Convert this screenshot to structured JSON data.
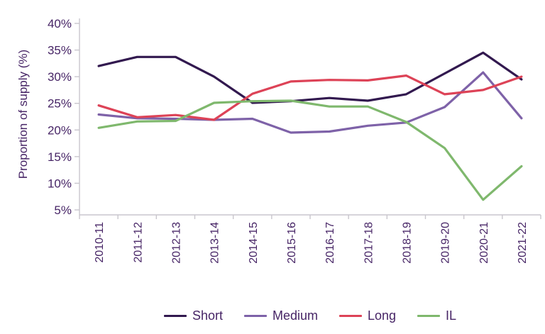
{
  "chart_data": {
    "type": "line",
    "title": "",
    "xlabel": "",
    "ylabel": "Proportion of supply (%)",
    "ylim": [
      5,
      40
    ],
    "yticks": [
      40,
      35,
      30,
      25,
      20,
      15,
      10,
      5
    ],
    "ytick_suffix": "%",
    "grid": false,
    "legend_position": "bottom",
    "categories": [
      "2010-11",
      "2011-12",
      "2012-13",
      "2013-14",
      "2014-15",
      "2015-16",
      "2016-17",
      "2017-18",
      "2018-19",
      "2019-20",
      "2020-21",
      "2021-22"
    ],
    "series": [
      {
        "name": "Short",
        "color": "#32194f",
        "values": [
          32.0,
          33.7,
          33.7,
          30.0,
          25.1,
          25.4,
          26.0,
          25.5,
          26.7,
          30.6,
          34.5,
          29.5
        ]
      },
      {
        "name": "Medium",
        "color": "#7e62a8",
        "values": [
          22.9,
          22.2,
          22.1,
          21.9,
          22.1,
          19.5,
          19.7,
          20.8,
          21.4,
          24.3,
          30.8,
          22.2
        ]
      },
      {
        "name": "Long",
        "color": "#dd4357",
        "values": [
          24.6,
          22.4,
          22.8,
          21.9,
          26.8,
          29.1,
          29.4,
          29.3,
          30.2,
          26.7,
          27.5,
          30.0
        ]
      },
      {
        "name": "IL",
        "color": "#7fb86d",
        "values": [
          20.4,
          21.6,
          21.7,
          25.1,
          25.4,
          25.5,
          24.4,
          24.4,
          21.5,
          16.6,
          6.9,
          13.2
        ]
      }
    ],
    "colors": {
      "text": "#472566",
      "axis": "#c9c6cd"
    }
  }
}
